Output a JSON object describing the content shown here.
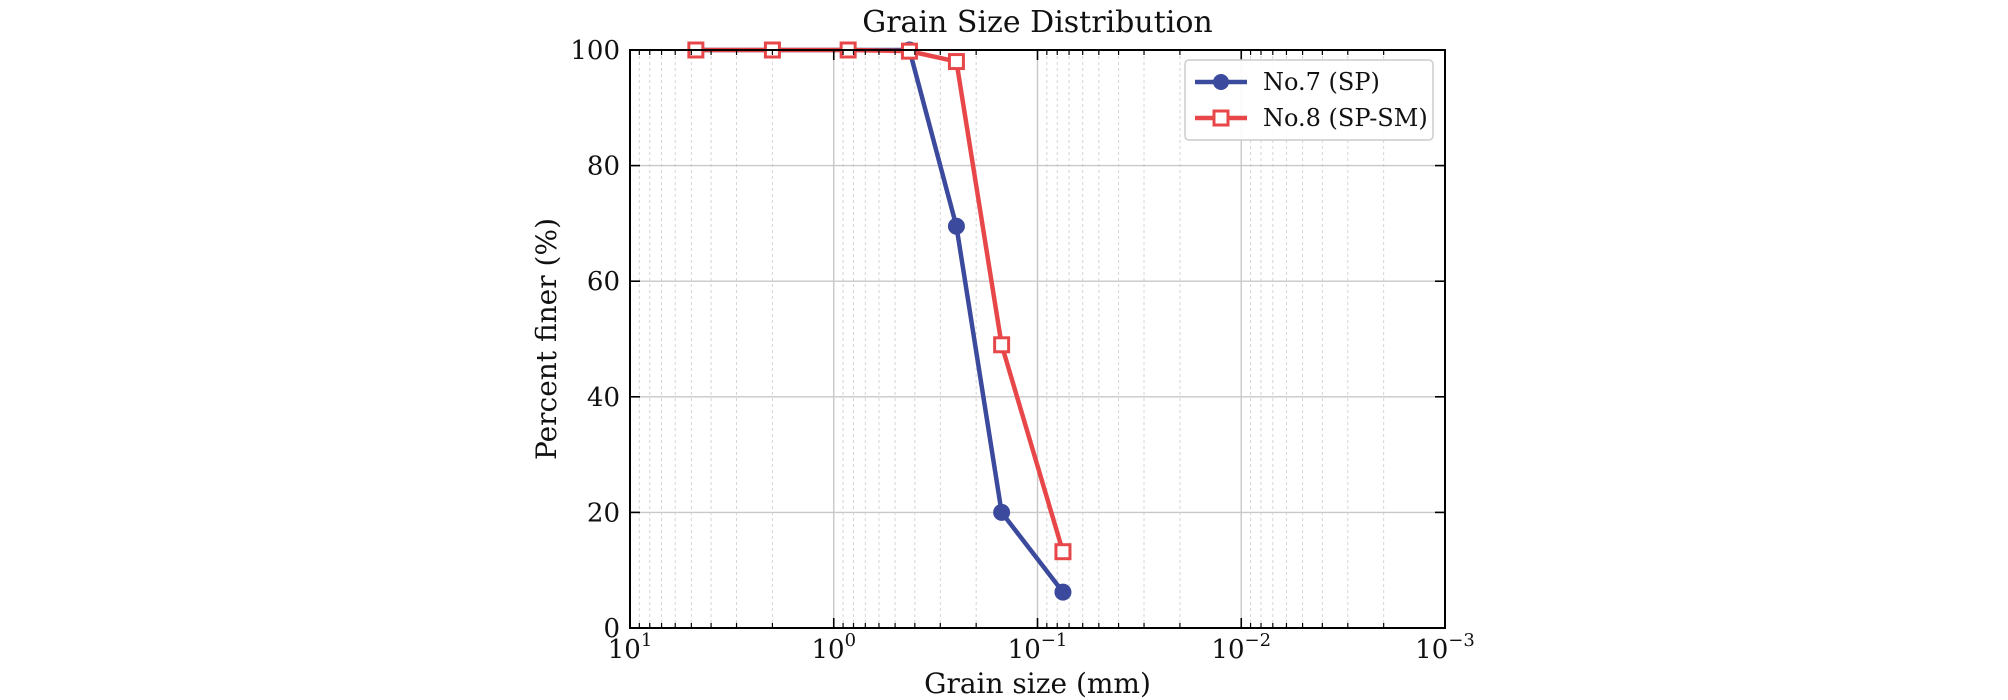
{
  "chart_data": {
    "type": "line",
    "title": "Grain Size Distribution",
    "xlabel": "Grain size (mm)",
    "ylabel": "Percent finer (%)",
    "x_scale": "log",
    "x_reversed": true,
    "xlim": [
      10,
      0.001
    ],
    "ylim": [
      0,
      100
    ],
    "grid": true,
    "legend_position": "top-right",
    "x_ticks": [
      {
        "value": 10,
        "base": "10",
        "exp": "1"
      },
      {
        "value": 1,
        "base": "10",
        "exp": "0"
      },
      {
        "value": 0.1,
        "base": "10",
        "exp": "−1"
      },
      {
        "value": 0.01,
        "base": "10",
        "exp": "−2"
      },
      {
        "value": 0.001,
        "base": "10",
        "exp": "−3"
      }
    ],
    "y_ticks": [
      "0",
      "20",
      "40",
      "60",
      "80",
      "100"
    ],
    "series": [
      {
        "name": "No.7 (SP)",
        "color": "#3b4a9c",
        "marker": "circle-filled",
        "x": [
          4.75,
          2.0,
          0.85,
          0.425,
          0.25,
          0.15,
          0.075
        ],
        "y": [
          100,
          100,
          100,
          100,
          69.5,
          20,
          6.2
        ]
      },
      {
        "name": "No.8 (SP-SM)",
        "color": "#e8474a",
        "marker": "square-open",
        "x": [
          4.75,
          2.0,
          0.85,
          0.425,
          0.25,
          0.15,
          0.075
        ],
        "y": [
          100,
          100,
          100,
          99.8,
          98,
          49,
          13.2
        ]
      }
    ]
  }
}
